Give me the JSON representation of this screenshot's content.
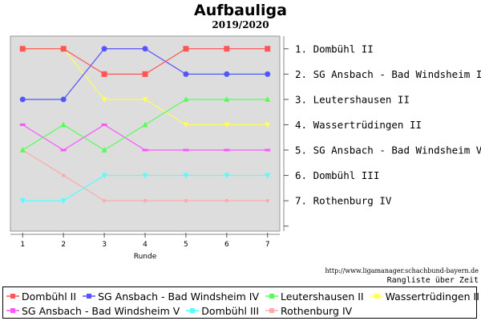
{
  "chart_data": {
    "type": "line",
    "title": "Aufbauliga",
    "subtitle": "2019/2020",
    "xlabel": "Runde",
    "ylabel": "",
    "x": [
      1,
      2,
      3,
      4,
      5,
      6,
      7
    ],
    "xlim": [
      0.7,
      7.3
    ],
    "ylim": [
      0.5,
      8.2
    ],
    "y_inverted": true,
    "grid": false,
    "background": "#dddddd",
    "rank_labels": [
      "1. Dombühl II",
      "2. SG Ansbach - Bad Windsheim IV",
      "3. Leutershausen II",
      "4. Wassertrüdingen II",
      "5. SG Ansbach - Bad Windsheim V",
      "6. Dombühl III",
      "7. Rothenburg IV"
    ],
    "series": [
      {
        "name": "Dombühl II",
        "color": "#ff5555",
        "marker": "square",
        "values": [
          1,
          1,
          2,
          2,
          1,
          1,
          1
        ]
      },
      {
        "name": "SG Ansbach - Bad Windsheim IV",
        "color": "#5555ff",
        "marker": "circle",
        "values": [
          3,
          3,
          1,
          1,
          2,
          2,
          2
        ]
      },
      {
        "name": "Leutershausen II",
        "color": "#55ff55",
        "marker": "triangle-up",
        "values": [
          5,
          4,
          5,
          4,
          3,
          3,
          3
        ]
      },
      {
        "name": "Wassertrüdingen II",
        "color": "#ffff55",
        "marker": "triangle-down",
        "values": [
          1,
          1,
          3,
          3,
          4,
          4,
          4
        ]
      },
      {
        "name": "SG Ansbach - Bad Windsheim V",
        "color": "#ff55ff",
        "marker": "dash",
        "values": [
          4,
          5,
          4,
          5,
          5,
          5,
          5
        ]
      },
      {
        "name": "Dombühl III",
        "color": "#55ffff",
        "marker": "triangle-down",
        "values": [
          7,
          7,
          6,
          6,
          6,
          6,
          6
        ]
      },
      {
        "name": "Rothenburg IV",
        "color": "#ffaaaa",
        "marker": "dot",
        "values": [
          5,
          6,
          7,
          7,
          7,
          7,
          7
        ]
      }
    ],
    "legend_position": "bottom"
  },
  "footer": {
    "source": "http://www.ligamanager.schachbund-bayern.de",
    "caption": "Rangliste über Zeit"
  }
}
